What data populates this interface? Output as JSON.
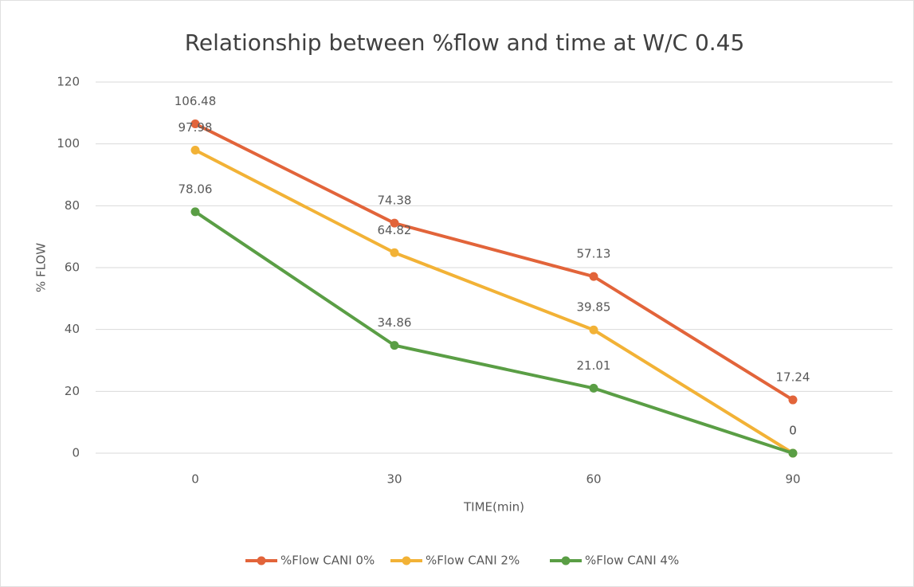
{
  "chart_data": {
    "type": "line",
    "title": "Relationship between %flow and time at W/C 0.45",
    "x_label": "TIME(min)",
    "y_label": "% FLOW",
    "categories": [
      "0",
      "30",
      "60",
      "90"
    ],
    "series": [
      {
        "name": "%Flow CANI 0%",
        "color": "#e2643a",
        "values": [
          106.48,
          74.38,
          57.13,
          17.24
        ]
      },
      {
        "name": "%Flow CANI 2%",
        "color": "#f2b236",
        "values": [
          97.98,
          64.82,
          39.85,
          0
        ]
      },
      {
        "name": "%Flow CANI 4%",
        "color": "#5a9e45",
        "values": [
          78.06,
          34.86,
          21.01,
          0
        ]
      }
    ],
    "ylim": [
      0,
      120
    ],
    "yticks": [
      0,
      20,
      40,
      60,
      80,
      100,
      120
    ],
    "grid": true,
    "legend": "bottom"
  }
}
